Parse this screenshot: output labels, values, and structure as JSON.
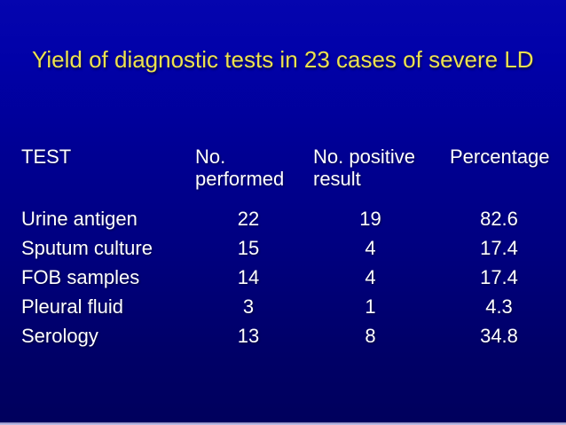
{
  "slide": {
    "title": "Yield of diagnostic tests in 23 cases of severe LD"
  },
  "table": {
    "headers": [
      {
        "line1": "TEST",
        "line2": ""
      },
      {
        "line1": "No.",
        "line2": "performed"
      },
      {
        "line1": "No. positive",
        "line2": "result"
      },
      {
        "line1": "Percentage",
        "line2": ""
      }
    ],
    "rows": [
      {
        "test": "Urine antigen",
        "no_performed": "22",
        "no_positive": "19",
        "percentage": "82.6"
      },
      {
        "test": "Sputum culture",
        "no_performed": "15",
        "no_positive": "4",
        "percentage": "17.4"
      },
      {
        "test": "FOB samples",
        "no_performed": "14",
        "no_positive": "4",
        "percentage": "17.4"
      },
      {
        "test": "Pleural fluid",
        "no_performed": "3",
        "no_positive": "1",
        "percentage": "4.3"
      },
      {
        "test": "Serology",
        "no_performed": "13",
        "no_positive": "8",
        "percentage": "34.8"
      }
    ]
  },
  "chart_data": {
    "type": "table",
    "title": "Yield of diagnostic tests in 23 cases of severe LD",
    "columns": [
      "TEST",
      "No. performed",
      "No. positive result",
      "Percentage"
    ],
    "rows": [
      [
        "Urine antigen",
        22,
        19,
        82.6
      ],
      [
        "Sputum culture",
        15,
        4,
        17.4
      ],
      [
        "FOB samples",
        14,
        4,
        17.4
      ],
      [
        "Pleural fluid",
        3,
        1,
        4.3
      ],
      [
        "Serology",
        13,
        8,
        34.8
      ]
    ]
  },
  "colors": {
    "background_top": "#0505AF",
    "background_middle": "#000080",
    "background_bottom": "#00005C",
    "title_text": "#EDE24E",
    "table_text": "#FFFFFF",
    "bottom_edge_line": "#B4B4DE"
  }
}
